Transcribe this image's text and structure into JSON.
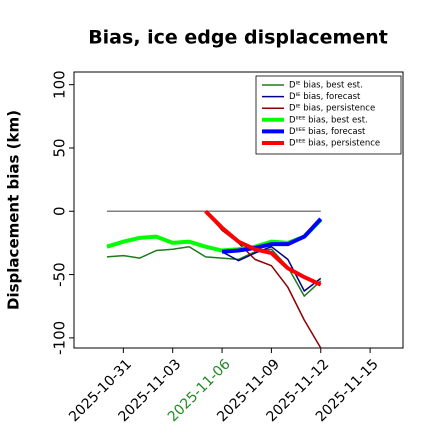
{
  "chart_data": {
    "type": "line",
    "title": "Bias, ice edge displacement",
    "ylabel": "Displacement bias (km)",
    "x": [
      "2025-10-30",
      "2025-10-31",
      "2025-11-01",
      "2025-11-02",
      "2025-11-03",
      "2025-11-04",
      "2025-11-05",
      "2025-11-06",
      "2025-11-07",
      "2025-11-08",
      "2025-11-09",
      "2025-11-10",
      "2025-11-11",
      "2025-11-12"
    ],
    "xlim": [
      "2025-10-28",
      "2025-11-17"
    ],
    "xticks": [
      "2025-10-31",
      "2025-11-03",
      "2025-11-06",
      "2025-11-09",
      "2025-11-12",
      "2025-11-15"
    ],
    "highlight_xtick": "2025-11-06",
    "highlight_color": "#228b22",
    "ylim": [
      -108,
      110
    ],
    "yticks": [
      100,
      50,
      0,
      -50,
      -100
    ],
    "reference_line": {
      "y": 0,
      "x": [
        "2025-10-30",
        "2025-11-12"
      ],
      "color": "#808080"
    },
    "legend": "upper right",
    "series": [
      {
        "name": "Dᴵᴱ bias, best est.",
        "color": "#1e7a1e",
        "linewidth": 1.5,
        "values": [
          -36,
          -35,
          -37,
          -31,
          -30,
          -28,
          -36,
          -37,
          -38,
          -32,
          -30,
          -44,
          -67,
          -55
        ]
      },
      {
        "name": "Dᴵᴱ bias, forecast",
        "color": "#00008b",
        "linewidth": 1.5,
        "values": [
          null,
          null,
          null,
          null,
          null,
          null,
          null,
          -32,
          -39,
          -33,
          -28,
          -38,
          -63,
          -53
        ]
      },
      {
        "name": "Dᴵᴱ bias, persistence",
        "color": "#8b0000",
        "linewidth": 1.5,
        "values": [
          null,
          null,
          null,
          null,
          null,
          null,
          0,
          -15,
          -25,
          -38,
          -43,
          -60,
          -86,
          -108
        ]
      },
      {
        "name": "Dᴵᴵᴱᴱ bias, best est.",
        "color": "#00ff00",
        "linewidth": 4,
        "values": [
          -28,
          -24,
          -21,
          -20,
          -25,
          -24,
          -28,
          -31,
          -30,
          -28,
          -24,
          -25,
          -20,
          -7
        ]
      },
      {
        "name": "Dᴵᴵᴱᴱ bias, forecast",
        "color": "#0000ff",
        "linewidth": 4,
        "values": [
          null,
          null,
          null,
          null,
          null,
          null,
          null,
          -32,
          -31,
          -29,
          -26,
          -26,
          -20,
          -6
        ]
      },
      {
        "name": "Dᴵᴵᴱᴱ bias, persistence",
        "color": "#ff0000",
        "linewidth": 4,
        "values": [
          null,
          null,
          null,
          null,
          null,
          null,
          0,
          -13,
          -24,
          -30,
          -33,
          -45,
          -52,
          -58
        ]
      }
    ]
  }
}
